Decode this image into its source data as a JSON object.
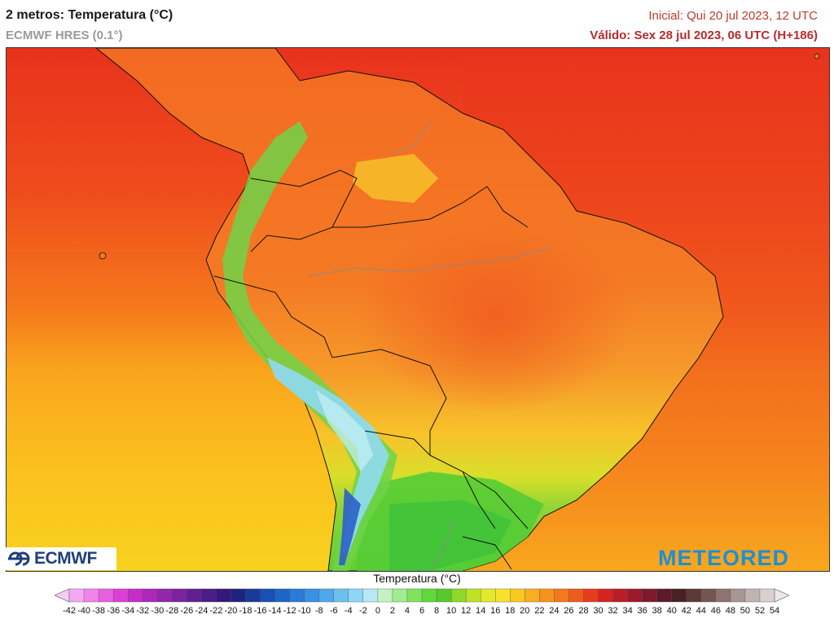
{
  "header": {
    "title": "2 metros: Temperatura (°C)",
    "model": "ECMWF HRES (0.1°)",
    "initial": "Inicial: Qui 20 jul 2023, 12 UTC",
    "valid": "Válido: Sex 28 jul 2023, 06 UTC (H+186)"
  },
  "map": {
    "region": "South America",
    "field": "2 m temperature",
    "colors": {
      "ocean_north": "#ef3f1c",
      "ocean_mid": "#f7731d",
      "ocean_south": "#fbbd1c",
      "land_north": "#f36a22",
      "land_central": "#f5962a",
      "land_south": "#7fd036",
      "andes_cold": "#7fd7f2",
      "andes_colder": "#2c5fc9"
    }
  },
  "logos": {
    "left": "ECMWF",
    "right": "METEORED"
  },
  "legend": {
    "title": "Temperatura (°C)",
    "labels": [
      "-42",
      "-40",
      "-38",
      "-36",
      "-34",
      "-32",
      "-30",
      "-28",
      "-26",
      "-24",
      "-22",
      "-20",
      "-18",
      "-16",
      "-14",
      "-12",
      "-10",
      "-8",
      "-6",
      "-4",
      "-2",
      "0",
      "2",
      "4",
      "6",
      "8",
      "10",
      "12",
      "14",
      "16",
      "18",
      "20",
      "22",
      "24",
      "26",
      "28",
      "30",
      "32",
      "34",
      "36",
      "38",
      "40",
      "42",
      "44",
      "46",
      "48",
      "50",
      "52",
      "54"
    ],
    "colors": [
      "#f6ccf6",
      "#f3a8f0",
      "#ef84e9",
      "#e760e0",
      "#dc3fd7",
      "#c72cc9",
      "#ad27bc",
      "#9326ad",
      "#7b22a0",
      "#611f93",
      "#4a1c87",
      "#34187b",
      "#1f2380",
      "#1a3a9a",
      "#1850b3",
      "#1d66c8",
      "#2a7bd8",
      "#3991e2",
      "#4fa8ea",
      "#6cc0f1",
      "#8fd6f6",
      "#b6e9f8",
      "#c3f3c0",
      "#a1ec8f",
      "#7fe35f",
      "#5fd83b",
      "#57c92a",
      "#8ed82a",
      "#bde22a",
      "#e4e82a",
      "#f8e12a",
      "#fbc822",
      "#f9ae1f",
      "#f7931d",
      "#f3791c",
      "#ee5c1c",
      "#e63b1c",
      "#d62320",
      "#bb1d26",
      "#9c1a2a",
      "#7d1a2c",
      "#5e1a2a",
      "#4a2024",
      "#5c3a36",
      "#735652",
      "#8d7470",
      "#a69592",
      "#c0b4b2",
      "#d8d0cf",
      "#ebe8e7"
    ]
  }
}
